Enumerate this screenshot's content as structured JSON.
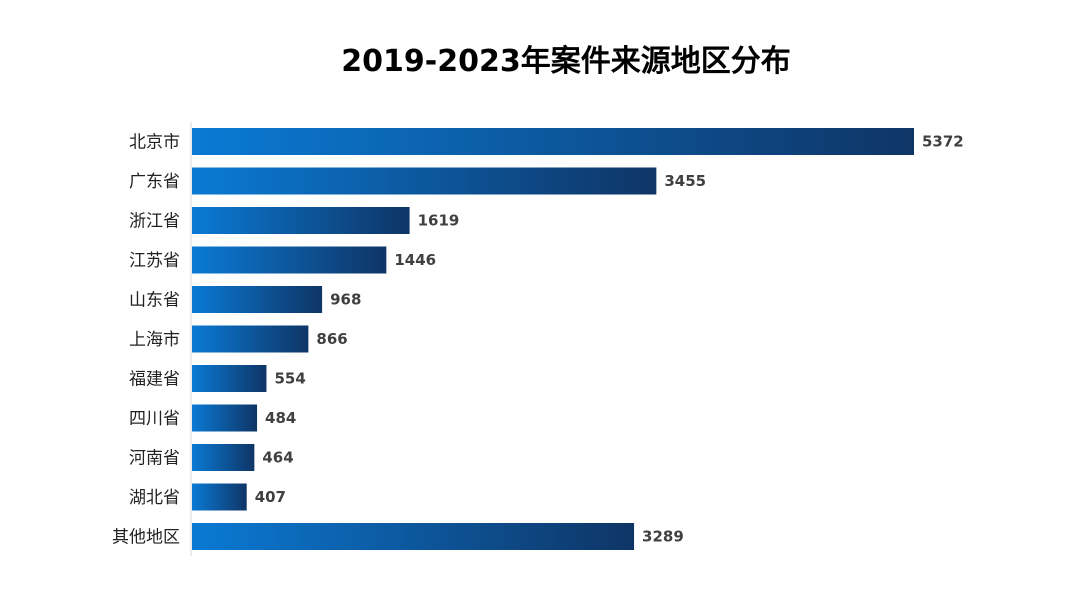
{
  "chart_data": {
    "type": "bar",
    "orientation": "horizontal",
    "title": "2019-2023年案件来源地区分布",
    "xlabel": "",
    "ylabel": "",
    "categories": [
      "北京市",
      "广东省",
      "浙江省",
      "江苏省",
      "山东省",
      "上海市",
      "福建省",
      "四川省",
      "河南省",
      "湖北省",
      "其他地区"
    ],
    "values": [
      5372,
      3455,
      1619,
      1446,
      968,
      866,
      554,
      484,
      464,
      407,
      3289
    ],
    "xlim": [
      0,
      5372
    ],
    "grid": false,
    "legend": "none",
    "data_labels": true,
    "colors": {
      "bar_gradient_start": "#0a7ad4",
      "bar_gradient_end": "#0f3566",
      "axis_line": "#d9d9d9",
      "value_label": "#404040"
    }
  }
}
